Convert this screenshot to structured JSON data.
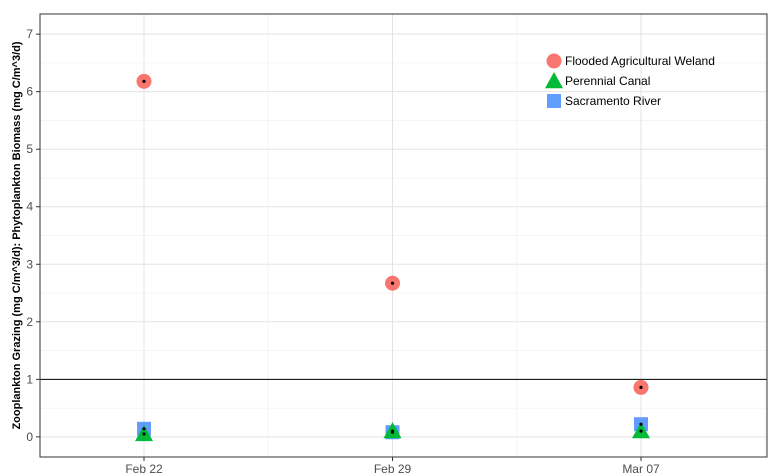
{
  "chart_data": {
    "type": "scatter",
    "title": "",
    "xlabel": "",
    "ylabel": "Zooplankton Grazing (mg C/m^3/d): Phytoplankton Biomass (mg C/m^3/d)",
    "categories": [
      "Feb 22",
      "Feb 29",
      "Mar 07"
    ],
    "ylim": [
      -0.35,
      7.35
    ],
    "yticks": [
      "0",
      "1",
      "2",
      "3",
      "4",
      "5",
      "6",
      "7"
    ],
    "grid": true,
    "reference_line": 1,
    "legend_position": "top-right",
    "series": [
      {
        "name": "Flooded Agricultural Weland",
        "shape": "circle",
        "color": "#F8766D",
        "values": [
          6.18,
          2.67,
          0.86
        ]
      },
      {
        "name": "Perennial Canal",
        "shape": "triangle",
        "color": "#00BA38",
        "values": [
          0.05,
          0.1,
          0.1
        ]
      },
      {
        "name": "Sacramento River",
        "shape": "square",
        "color": "#619CFF",
        "values": [
          0.14,
          0.08,
          0.22
        ]
      }
    ]
  }
}
